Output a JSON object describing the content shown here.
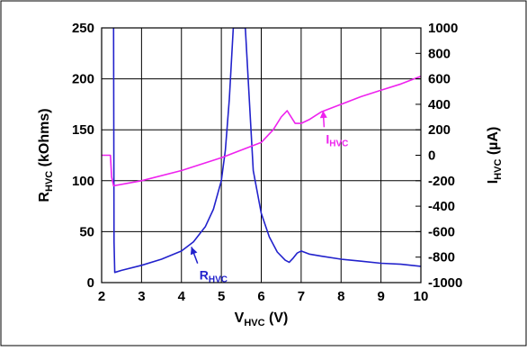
{
  "chart_data": {
    "type": "line",
    "xlabel": {
      "main": "V",
      "sub": "HVC",
      "unit": " (V)"
    },
    "ylabel_left": {
      "main": "R",
      "sub": "HVC",
      "unit": " (kOhms)"
    },
    "ylabel_right": {
      "main": "I",
      "sub": "HVC",
      "unit": " (µA)"
    },
    "xlim": [
      2,
      10
    ],
    "ylim_left": [
      0,
      250
    ],
    "ylim_right": [
      -1000,
      1000
    ],
    "x_ticks": [
      2,
      3,
      4,
      5,
      6,
      7,
      8,
      9,
      10
    ],
    "y_left_ticks": [
      0,
      50,
      100,
      150,
      200,
      250
    ],
    "y_right_ticks": [
      -1000,
      -800,
      -600,
      -400,
      -200,
      0,
      200,
      400,
      600,
      800,
      1000
    ],
    "grid": true,
    "series": [
      {
        "name": "R_HVC",
        "axis": "left",
        "color": "#2222cc",
        "x": [
          2.3,
          2.31,
          2.33,
          2.5,
          3.0,
          3.5,
          4.0,
          4.3,
          4.6,
          4.8,
          5.0,
          5.1,
          5.2,
          5.3,
          5.6,
          5.8,
          6.0,
          6.2,
          6.4,
          6.6,
          6.7,
          6.8,
          6.9,
          7.0,
          7.2,
          7.5,
          8.0,
          8.5,
          9.0,
          9.5,
          10.0
        ],
        "y": [
          250,
          40,
          10,
          12,
          17,
          23,
          31,
          40,
          55,
          72,
          100,
          130,
          180,
          250,
          250,
          110,
          68,
          45,
          30,
          22,
          20,
          24,
          29,
          31,
          28,
          26,
          23,
          21,
          19,
          18,
          16
        ],
        "annotation": {
          "main": "R",
          "sub": "HVC",
          "x": 4.25,
          "y": 35,
          "text_x": 4.45,
          "text_y": 10
        }
      },
      {
        "name": "I_HVC",
        "axis": "right",
        "color": "#ee22ee",
        "x": [
          2.0,
          2.22,
          2.25,
          2.3,
          3.0,
          4.0,
          5.0,
          5.5,
          6.0,
          6.3,
          6.5,
          6.65,
          6.85,
          7.0,
          7.2,
          7.5,
          8.0,
          8.5,
          9.0,
          9.5,
          10.0
        ],
        "y": [
          0,
          0,
          -170,
          -240,
          -200,
          -120,
          -20,
          40,
          100,
          200,
          300,
          350,
          250,
          250,
          280,
          340,
          400,
          460,
          510,
          560,
          620
        ],
        "annotation": {
          "main": "I",
          "sub": "HVC",
          "x": 7.55,
          "y": 350,
          "text_x": 7.62,
          "text_y": 150
        }
      }
    ]
  }
}
